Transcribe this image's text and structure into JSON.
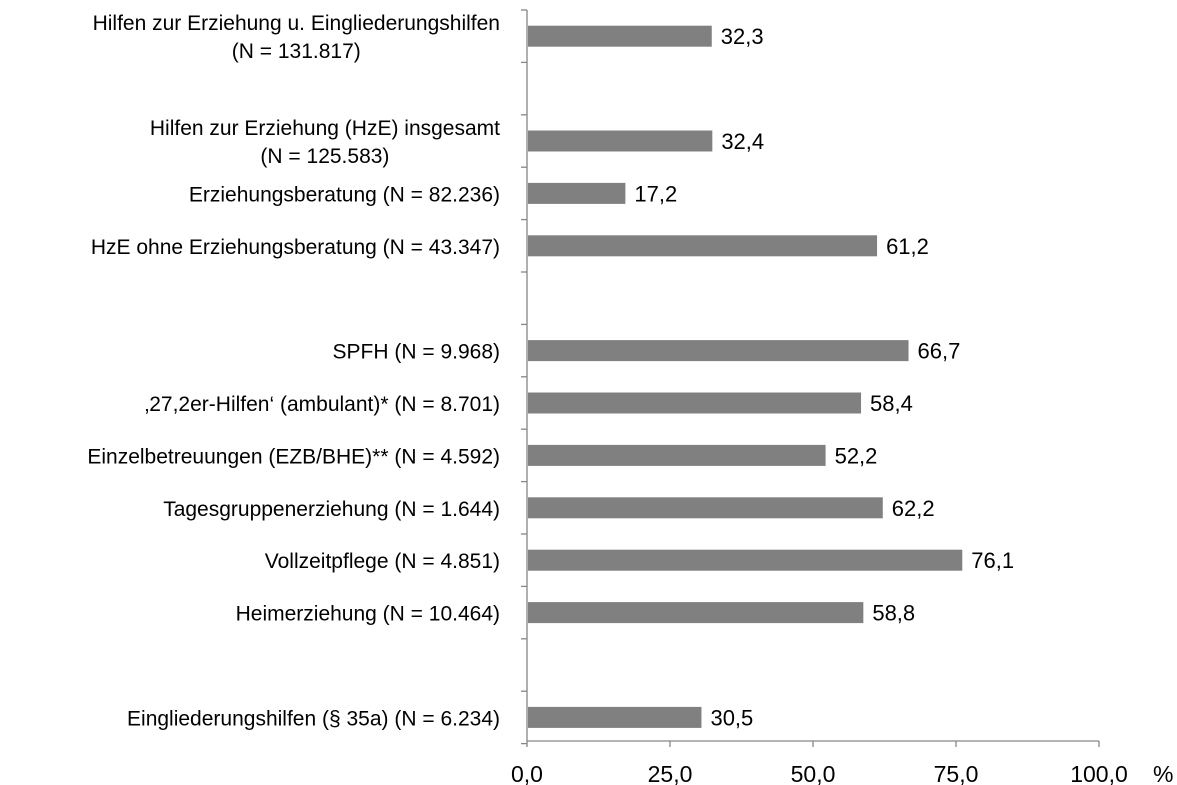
{
  "chart_data": {
    "type": "bar",
    "orientation": "horizontal",
    "title": "",
    "xlabel": "",
    "ylabel": "",
    "unit": "%",
    "xlim": [
      0,
      100
    ],
    "x_ticks": [
      "0,0",
      "25,0",
      "50,0",
      "75,0",
      "100,0"
    ],
    "bar_color": "#808080",
    "grid": false,
    "legend": "none",
    "slots": [
      {
        "lines": [
          "Hilfen zur Erziehung u. Eingliederungshilfen",
          "(N = 131.817)"
        ],
        "value": 32.3,
        "value_label": "32,3"
      },
      {
        "empty": true
      },
      {
        "lines": [
          "Hilfen zur Erziehung (HzE) insgesamt",
          "(N = 125.583)"
        ],
        "value": 32.4,
        "value_label": "32,4"
      },
      {
        "lines": [
          "Erziehungsberatung (N = 82.236)"
        ],
        "value": 17.2,
        "value_label": "17,2"
      },
      {
        "lines": [
          "HzE ohne Erziehungsberatung (N = 43.347)"
        ],
        "value": 61.2,
        "value_label": "61,2"
      },
      {
        "empty": true
      },
      {
        "lines": [
          "SPFH (N = 9.968)"
        ],
        "value": 66.7,
        "value_label": "66,7"
      },
      {
        "lines": [
          "‚27,2er-Hilfen‘ (ambulant)* (N = 8.701)"
        ],
        "value": 58.4,
        "value_label": "58,4"
      },
      {
        "lines": [
          "Einzelbetreuungen (EZB/BHE)** (N = 4.592)"
        ],
        "value": 52.2,
        "value_label": "52,2"
      },
      {
        "lines": [
          "Tagesgruppenerziehung (N = 1.644)"
        ],
        "value": 62.2,
        "value_label": "62,2"
      },
      {
        "lines": [
          "Vollzeitpflege (N = 4.851)"
        ],
        "value": 76.1,
        "value_label": "76,1"
      },
      {
        "lines": [
          "Heimerziehung (N = 10.464)"
        ],
        "value": 58.8,
        "value_label": "58,8"
      },
      {
        "empty": true
      },
      {
        "lines": [
          "Eingliederungshilfen (§ 35a) (N = 6.234)"
        ],
        "value": 30.5,
        "value_label": "30,5"
      }
    ]
  }
}
